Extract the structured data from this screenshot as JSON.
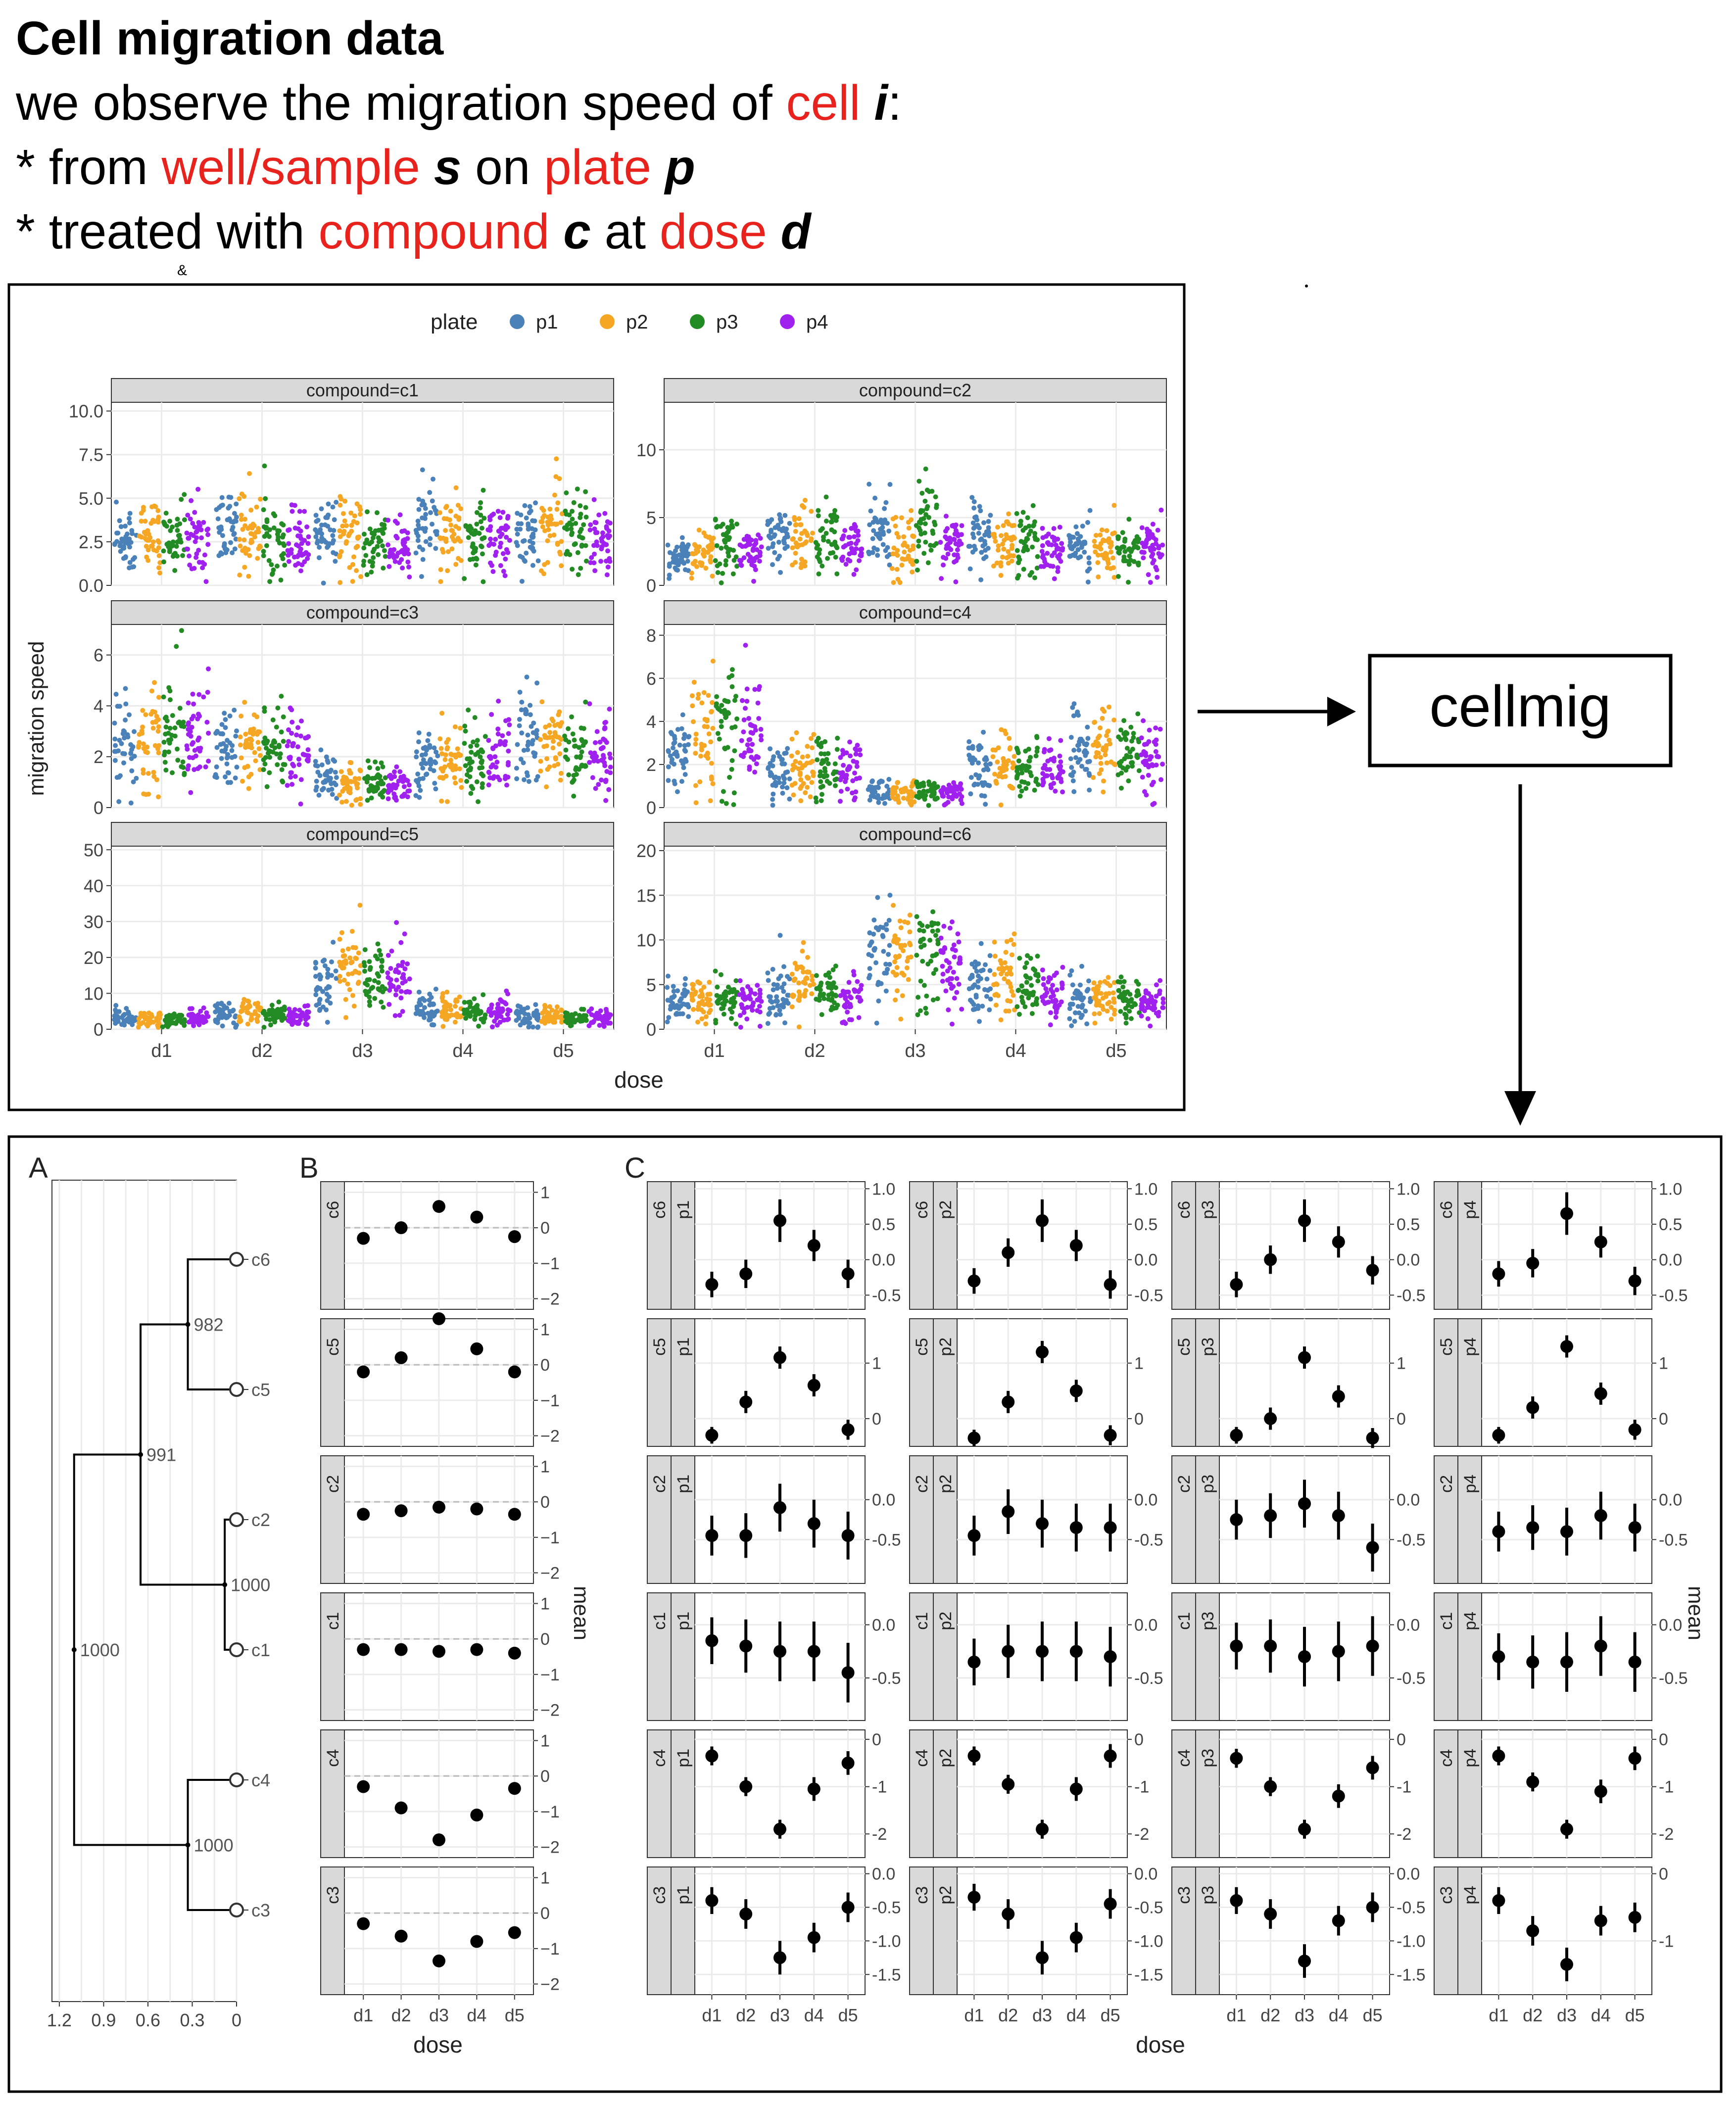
{
  "header": {
    "title": "Cell migration data",
    "line1": [
      {
        "t": "we observe the migration speed of ",
        "s": "n"
      },
      {
        "t": "cell",
        "s": "r"
      },
      {
        "t": " ",
        "s": "n"
      },
      {
        "t": "i",
        "s": "bi"
      },
      {
        "t": ":",
        "s": "n"
      }
    ],
    "line2": [
      {
        "t": "* from ",
        "s": "n"
      },
      {
        "t": "well/sample",
        "s": "r"
      },
      {
        "t": " ",
        "s": "n"
      },
      {
        "t": "s",
        "s": "bi"
      },
      {
        "t": " on ",
        "s": "n"
      },
      {
        "t": "plate",
        "s": "r"
      },
      {
        "t": " ",
        "s": "n"
      },
      {
        "t": "p",
        "s": "bi"
      }
    ],
    "line3": [
      {
        "t": "* treated with ",
        "s": "n"
      },
      {
        "t": "compound",
        "s": "r"
      },
      {
        "t": " ",
        "s": "n"
      },
      {
        "t": "c",
        "s": "bi"
      },
      {
        "t": " at ",
        "s": "n"
      },
      {
        "t": "dose",
        "s": "r"
      },
      {
        "t": " ",
        "s": "n"
      },
      {
        "t": "d",
        "s": "bi"
      }
    ],
    "stray_mark": "&"
  },
  "colors": {
    "highlight": "#e8231e",
    "p1": "#4a81b9",
    "p2": "#f5a623",
    "p3": "#238b23",
    "p4": "#a020f0",
    "strip": "#d9d9d9",
    "grid": "#ebebeb"
  },
  "process_box": {
    "label": "cellmig"
  },
  "chart_data": [
    {
      "type": "scatter",
      "legend": {
        "title": "plate",
        "entries": [
          "p1",
          "p2",
          "p3",
          "p4"
        ],
        "placement": "top"
      },
      "xlabel": "dose",
      "ylabel": "migration speed",
      "categories": [
        "d1",
        "d2",
        "d3",
        "d4",
        "d5"
      ],
      "facets": [
        {
          "strip": "compound=c1",
          "ylim": [
            0,
            10.5
          ],
          "yticks": [
            "0.0",
            "2.5",
            "5.0",
            "7.5",
            "10.0"
          ],
          "ytick_values": [
            0,
            2.5,
            5,
            7.5,
            10
          ],
          "centers": [
            [
              2.7,
              2.9,
              2.6,
              2.8
            ],
            [
              3.2,
              3.0,
              2.8,
              2.6
            ],
            [
              3.0,
              2.7,
              2.5,
              2.4
            ],
            [
              3.1,
              2.9,
              2.8,
              2.6
            ],
            [
              2.9,
              3.3,
              3.0,
              2.5
            ]
          ]
        },
        {
          "strip": "compound=c2",
          "ylim": [
            0,
            13.5
          ],
          "yticks": [
            "0",
            "5",
            "10"
          ],
          "ytick_values": [
            0,
            5,
            10
          ],
          "centers": [
            [
              2.2,
              2.4,
              3.2,
              2.4
            ],
            [
              3.1,
              3.4,
              3.6,
              2.6
            ],
            [
              4.0,
              3.0,
              4.3,
              2.8
            ],
            [
              3.5,
              3.0,
              3.2,
              2.7
            ],
            [
              2.7,
              2.6,
              2.5,
              2.9
            ]
          ]
        },
        {
          "strip": "compound=c3",
          "ylim": [
            0,
            7.2
          ],
          "yticks": [
            "0",
            "2",
            "4",
            "6"
          ],
          "ytick_values": [
            0,
            2,
            4,
            6
          ],
          "centers": [
            [
              2.5,
              2.8,
              3.2,
              2.8
            ],
            [
              2.2,
              2.3,
              2.4,
              2.0
            ],
            [
              1.1,
              1.0,
              1.0,
              0.9
            ],
            [
              1.7,
              1.9,
              2.1,
              2.1
            ],
            [
              2.7,
              2.6,
              2.5,
              2.1
            ]
          ]
        },
        {
          "strip": "compound=c4",
          "ylim": [
            0,
            8.5
          ],
          "yticks": [
            "0",
            "2",
            "4",
            "6",
            "8"
          ],
          "ytick_values": [
            0,
            2,
            4,
            6,
            8
          ],
          "centers": [
            [
              2.7,
              3.4,
              3.7,
              3.7
            ],
            [
              1.6,
              1.8,
              1.8,
              1.8
            ],
            [
              0.8,
              0.7,
              0.8,
              0.7
            ],
            [
              1.8,
              1.9,
              1.8,
              1.7
            ],
            [
              2.6,
              2.8,
              2.6,
              2.4
            ]
          ]
        },
        {
          "strip": "compound=c5",
          "ylim": [
            0,
            51
          ],
          "yticks": [
            "0",
            "10",
            "20",
            "30",
            "40",
            "50"
          ],
          "ytick_values": [
            0,
            10,
            20,
            30,
            40,
            50
          ],
          "centers": [
            [
              3.0,
              3.0,
              2.5,
              3.0
            ],
            [
              4.5,
              4.8,
              4.0,
              3.5
            ],
            [
              13,
              17,
              14,
              15
            ],
            [
              6,
              6,
              5,
              5
            ],
            [
              3.5,
              3.5,
              3.0,
              3.0
            ]
          ]
        },
        {
          "strip": "compound=c6",
          "ylim": [
            0,
            20.5
          ],
          "yticks": [
            "0",
            "5",
            "10",
            "15",
            "20"
          ],
          "ytick_values": [
            0,
            5,
            10,
            15,
            20
          ],
          "centers": [
            [
              3,
              3,
              3.3,
              3
            ],
            [
              4,
              5,
              4,
              3.5
            ],
            [
              8,
              8,
              8,
              7
            ],
            [
              5,
              5.5,
              5,
              4
            ],
            [
              3.5,
              3.5,
              3.5,
              3
            ]
          ]
        }
      ]
    },
    {
      "type": "scatter",
      "panel": "A",
      "xticks": [
        "1.2",
        "0.9",
        "0.6",
        "0.3",
        "0"
      ],
      "xtick_values": [
        1.2,
        0.9,
        0.6,
        0.3,
        0
      ],
      "leaves": [
        "c6",
        "c5",
        "c2",
        "c1",
        "c4",
        "c3"
      ],
      "node_labels": [
        "982",
        "991",
        "1000",
        "1000",
        "1000"
      ],
      "merges": [
        {
          "left": "c6",
          "right": "c5",
          "height": 0.33,
          "label": "982"
        },
        {
          "left": "c2",
          "right": "c1",
          "height": 0.08,
          "label": "1000"
        },
        {
          "left": "m1",
          "right": "m2",
          "height": 0.65,
          "label": "991"
        },
        {
          "left": "c4",
          "right": "c3",
          "height": 0.33,
          "label": "1000"
        },
        {
          "left": "m3",
          "right": "m4",
          "height": 1.1,
          "label": "1000"
        }
      ]
    },
    {
      "type": "scatter",
      "panel": "B",
      "xlabel": "dose",
      "ylabel": "mean",
      "categories": [
        "d1",
        "d2",
        "d3",
        "d4",
        "d5"
      ],
      "rows": [
        {
          "strip": "c6",
          "ylim": [
            -2.3,
            1.3
          ],
          "yticks": [
            "1",
            "0",
            "−1",
            "−2"
          ],
          "ytick_values": [
            1,
            0,
            -1,
            -2
          ],
          "values": [
            -0.3,
            0.0,
            0.6,
            0.3,
            -0.25
          ],
          "err": [
            0.15,
            0.15,
            0.15,
            0.15,
            0.15
          ]
        },
        {
          "strip": "c5",
          "ylim": [
            -2.3,
            1.3
          ],
          "yticks": [
            "1",
            "0",
            "−1",
            "−2"
          ],
          "ytick_values": [
            1,
            0,
            -1,
            -2
          ],
          "values": [
            -0.2,
            0.2,
            1.3,
            0.45,
            -0.2
          ],
          "err": [
            0.15,
            0.15,
            0.15,
            0.15,
            0.15
          ]
        },
        {
          "strip": "c2",
          "ylim": [
            -2.3,
            1.3
          ],
          "yticks": [
            "1",
            "0",
            "−1",
            "−2"
          ],
          "ytick_values": [
            1,
            0,
            -1,
            -2
          ],
          "values": [
            -0.35,
            -0.25,
            -0.15,
            -0.2,
            -0.35
          ],
          "err": [
            0.15,
            0.15,
            0.15,
            0.15,
            0.15
          ]
        },
        {
          "strip": "c1",
          "ylim": [
            -2.3,
            1.3
          ],
          "yticks": [
            "1",
            "0",
            "−1",
            "−2"
          ],
          "ytick_values": [
            1,
            0,
            -1,
            -2
          ],
          "values": [
            -0.3,
            -0.3,
            -0.35,
            -0.3,
            -0.4
          ],
          "err": [
            0.15,
            0.15,
            0.15,
            0.15,
            0.15
          ]
        },
        {
          "strip": "c4",
          "ylim": [
            -2.3,
            1.3
          ],
          "yticks": [
            "1",
            "0",
            "−1",
            "−2"
          ],
          "ytick_values": [
            1,
            0,
            -1,
            -2
          ],
          "values": [
            -0.3,
            -0.9,
            -1.8,
            -1.1,
            -0.35
          ],
          "err": [
            0.15,
            0.15,
            0.15,
            0.15,
            0.15
          ]
        },
        {
          "strip": "c3",
          "ylim": [
            -2.3,
            1.3
          ],
          "yticks": [
            "1",
            "0",
            "−1",
            "−2"
          ],
          "ytick_values": [
            1,
            0,
            -1,
            -2
          ],
          "values": [
            -0.3,
            -0.65,
            -1.35,
            -0.8,
            -0.55
          ],
          "err": [
            0.15,
            0.15,
            0.15,
            0.15,
            0.15
          ]
        }
      ]
    },
    {
      "type": "scatter",
      "panel": "C",
      "xlabel": "dose",
      "ylabel": "mean",
      "categories": [
        "d1",
        "d2",
        "d3",
        "d4",
        "d5"
      ],
      "plates": [
        "p1",
        "p2",
        "p3",
        "p4"
      ],
      "rows": [
        {
          "strip": "c6",
          "ylim": [
            -0.7,
            1.1
          ],
          "yticks": [
            "1.0",
            "0.5",
            "0.0",
            "-0.5"
          ],
          "ytick_values": [
            1.0,
            0.5,
            0.0,
            -0.5
          ],
          "cells": [
            [
              -0.35,
              -0.2,
              0.55,
              0.2,
              -0.2
            ],
            [
              -0.3,
              0.1,
              0.55,
              0.2,
              -0.35
            ],
            [
              -0.35,
              0.0,
              0.55,
              0.25,
              -0.15
            ],
            [
              -0.2,
              -0.05,
              0.65,
              0.25,
              -0.3
            ]
          ],
          "err": [
            0.18,
            0.2,
            0.3,
            0.22,
            0.2
          ]
        },
        {
          "strip": "c5",
          "ylim": [
            -0.5,
            1.8
          ],
          "yticks": [
            "1",
            "0"
          ],
          "ytick_values": [
            1,
            0
          ],
          "cells": [
            [
              -0.3,
              0.3,
              1.1,
              0.6,
              -0.2
            ],
            [
              -0.35,
              0.3,
              1.2,
              0.5,
              -0.3
            ],
            [
              -0.3,
              0.0,
              1.1,
              0.4,
              -0.35
            ],
            [
              -0.3,
              0.2,
              1.3,
              0.45,
              -0.2
            ]
          ],
          "err": [
            0.15,
            0.2,
            0.2,
            0.2,
            0.18
          ]
        },
        {
          "strip": "c2",
          "ylim": [
            -1.05,
            0.55
          ],
          "yticks": [
            "0.0",
            "-0.5"
          ],
          "ytick_values": [
            0,
            -0.5
          ],
          "cells": [
            [
              -0.45,
              -0.45,
              -0.1,
              -0.3,
              -0.45
            ],
            [
              -0.45,
              -0.15,
              -0.3,
              -0.35,
              -0.35
            ],
            [
              -0.25,
              -0.2,
              -0.05,
              -0.2,
              -0.6
            ],
            [
              -0.4,
              -0.35,
              -0.4,
              -0.2,
              -0.35
            ]
          ],
          "err": [
            0.25,
            0.28,
            0.3,
            0.3,
            0.3
          ]
        },
        {
          "strip": "c1",
          "ylim": [
            -0.9,
            0.3
          ],
          "yticks": [
            "0.0",
            "-0.5"
          ],
          "ytick_values": [
            0,
            -0.5
          ],
          "cells": [
            [
              -0.15,
              -0.2,
              -0.25,
              -0.25,
              -0.45
            ],
            [
              -0.35,
              -0.25,
              -0.25,
              -0.25,
              -0.3
            ],
            [
              -0.2,
              -0.2,
              -0.3,
              -0.25,
              -0.2
            ],
            [
              -0.3,
              -0.35,
              -0.35,
              -0.2,
              -0.35
            ]
          ],
          "err": [
            0.22,
            0.25,
            0.28,
            0.28,
            0.28
          ]
        },
        {
          "strip": "c4",
          "ylim": [
            -2.5,
            0.2
          ],
          "yticks": [
            "0",
            "-1",
            "-2"
          ],
          "ytick_values": [
            0,
            -1,
            -2
          ],
          "cells": [
            [
              -0.35,
              -1.0,
              -1.9,
              -1.05,
              -0.5
            ],
            [
              -0.35,
              -0.95,
              -1.9,
              -1.05,
              -0.35
            ],
            [
              -0.4,
              -1.0,
              -1.9,
              -1.2,
              -0.6
            ],
            [
              -0.35,
              -0.9,
              -1.9,
              -1.1,
              -0.4
            ]
          ],
          "err": [
            0.2,
            0.2,
            0.2,
            0.25,
            0.25
          ]
        },
        {
          "strip": "c3",
          "ylim": [
            -1.8,
            0.1
          ],
          "yticks": [
            "0.0",
            "-0.5",
            "-1.0",
            "-1.5"
          ],
          "ytick_values": [
            0,
            -0.5,
            -1.0,
            -1.5
          ],
          "cells": [
            [
              -0.4,
              -0.6,
              -1.25,
              -0.95,
              -0.5
            ],
            [
              -0.35,
              -0.6,
              -1.25,
              -0.95,
              -0.45
            ],
            [
              -0.4,
              -0.6,
              -1.3,
              -0.7,
              -0.5
            ],
            [
              -0.4,
              -0.85,
              -1.35,
              -0.7,
              -0.65
            ]
          ],
          "err": [
            0.2,
            0.22,
            0.25,
            0.22,
            0.22
          ]
        }
      ],
      "c4_p2_yticks": [
        "0",
        "-1",
        "-2"
      ],
      "c6_p4_yticks": [
        "1.0",
        "0.5",
        "0.0",
        "-0.5"
      ],
      "c3_p4_yticks": [
        "0",
        "-1"
      ]
    }
  ],
  "panel_letters": {
    "a": "A",
    "b": "B",
    "c": "C"
  }
}
